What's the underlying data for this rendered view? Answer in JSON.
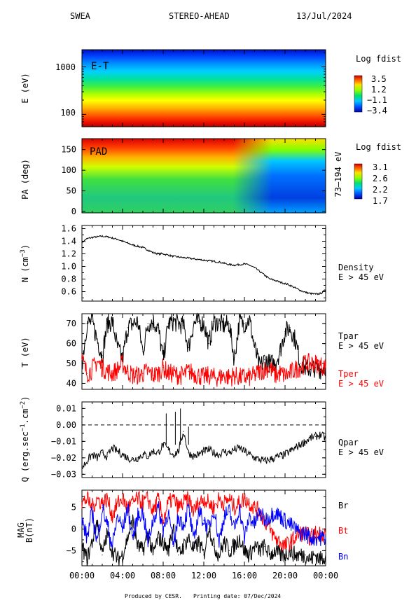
{
  "header": {
    "instrument": "SWEA",
    "spacecraft": "STEREO-AHEAD",
    "date": "13/Jul/2024"
  },
  "footer": {
    "credit": "Produced by CESR.",
    "printing": "Printing date: 07/Dec/2024"
  },
  "colors": {
    "black": "#000000",
    "red": "#ff0000",
    "blue": "#0000ff",
    "dashed": "#000000"
  },
  "chart_data": [
    {
      "id": "energy-spectrogram",
      "type": "heatmap",
      "annotation": "E-T",
      "ylabel": "E (eV)",
      "yscale": "log",
      "ylim": [
        55,
        2300
      ],
      "yticks": [
        {
          "value": 100,
          "label": "100"
        },
        {
          "value": 1000,
          "label": "1000"
        }
      ],
      "colorbar": {
        "title": "Log fdist",
        "range": [
          -3.4,
          3.5
        ],
        "ticks": [
          "3.5",
          "1.2",
          "−1.1",
          "−3.4"
        ]
      }
    },
    {
      "id": "pad-spectrogram",
      "type": "heatmap",
      "annotation": "PAD",
      "ylabel": "PA (deg)",
      "ylim": [
        0,
        180
      ],
      "yticks": [
        0,
        50,
        100,
        150
      ],
      "right_label": "73–194 eV",
      "colorbar": {
        "title": "Log fdist",
        "range": [
          1.7,
          3.1
        ],
        "ticks": [
          "3.1",
          "2.6",
          "2.2",
          "1.7"
        ]
      }
    },
    {
      "id": "density",
      "type": "line",
      "ylabel": "N (cm",
      "ylabel_sup": "−3",
      "ylim": [
        0.45,
        1.65
      ],
      "yticks": [
        "0.6",
        "0.8",
        "1.0",
        "1.2",
        "1.4",
        "1.6"
      ],
      "ytick_values": [
        0.6,
        0.8,
        1.0,
        1.2,
        1.4,
        1.6
      ],
      "legend": [
        "Density",
        "E > 45 eV"
      ],
      "series": [
        {
          "name": "Density",
          "color": "#000000",
          "x": [
            0,
            0.5,
            1,
            1.5,
            2,
            2.5,
            3,
            3.5,
            4,
            4.5,
            5,
            5.5,
            6,
            6.5,
            7,
            7.5,
            8,
            8.5,
            9,
            9.5,
            10,
            10.5,
            11,
            11.5,
            12,
            12.5,
            13,
            13.5,
            14,
            14.5,
            15,
            15.5,
            16,
            16.5,
            17,
            17.5,
            18,
            18.5,
            19,
            19.5,
            20,
            20.5,
            21,
            21.5,
            22,
            22.5,
            23,
            23.5,
            24
          ],
          "values": [
            1.38,
            1.44,
            1.46,
            1.47,
            1.48,
            1.47,
            1.45,
            1.43,
            1.4,
            1.37,
            1.34,
            1.32,
            1.3,
            1.26,
            1.22,
            1.2,
            1.2,
            1.18,
            1.16,
            1.15,
            1.14,
            1.13,
            1.12,
            1.11,
            1.1,
            1.09,
            1.08,
            1.07,
            1.05,
            1.03,
            1.02,
            1.03,
            1.04,
            1.02,
            0.98,
            0.92,
            0.86,
            0.8,
            0.78,
            0.75,
            0.73,
            0.7,
            0.66,
            0.62,
            0.59,
            0.57,
            0.56,
            0.57,
            0.63
          ]
        }
      ]
    },
    {
      "id": "temperature",
      "type": "line",
      "ylabel": "T (eV)",
      "ylim": [
        37,
        75
      ],
      "yticks": [
        "40",
        "50",
        "60",
        "70"
      ],
      "ytick_values": [
        40,
        50,
        60,
        70
      ],
      "series": [
        {
          "name": "Tpar",
          "label_line2": "E > 45 eV",
          "color": "#000000",
          "x": [
            0,
            0.5,
            1,
            1.5,
            2,
            2.5,
            3,
            3.5,
            4,
            4.5,
            5,
            5.5,
            6,
            6.5,
            7,
            7.5,
            8,
            8.5,
            9,
            9.5,
            10,
            10.5,
            11,
            11.5,
            12,
            12.5,
            13,
            13.5,
            14,
            14.5,
            15,
            15.5,
            16,
            16.5,
            17,
            17.5,
            18,
            18.5,
            19,
            19.5,
            20,
            20.5,
            21,
            21.5,
            22,
            22.5,
            23,
            23.5,
            24
          ],
          "values": [
            50,
            70,
            71,
            62,
            54,
            70,
            71,
            58,
            52,
            68,
            70,
            71,
            56,
            70,
            71,
            68,
            52,
            70,
            71,
            70,
            69,
            58,
            70,
            71,
            70,
            60,
            71,
            70,
            69,
            70,
            52,
            71,
            70,
            72,
            58,
            48,
            52,
            50,
            50,
            56,
            66,
            68,
            62,
            50,
            48,
            47,
            48,
            47,
            49
          ]
        },
        {
          "name": "Tper",
          "label_line2": "E > 45 eV",
          "color": "#ff0000",
          "x": [
            0,
            0.5,
            1,
            1.5,
            2,
            2.5,
            3,
            3.5,
            4,
            4.5,
            5,
            5.5,
            6,
            6.5,
            7,
            7.5,
            8,
            8.5,
            9,
            9.5,
            10,
            10.5,
            11,
            11.5,
            12,
            12.5,
            13,
            13.5,
            14,
            14.5,
            15,
            15.5,
            16,
            16.5,
            17,
            17.5,
            18,
            18.5,
            19,
            19.5,
            20,
            20.5,
            21,
            21.5,
            22,
            22.5,
            23,
            23.5,
            24
          ],
          "values": [
            52,
            45,
            47,
            51,
            48,
            46,
            45,
            47,
            50,
            46,
            44,
            44,
            45,
            46,
            44,
            45,
            48,
            45,
            45,
            44,
            44,
            46,
            45,
            44,
            43,
            44,
            43,
            43,
            44,
            43,
            44,
            43,
            43,
            43,
            44,
            46,
            47,
            48,
            44,
            45,
            44,
            45,
            47,
            48,
            50,
            50,
            50,
            49,
            48
          ]
        }
      ]
    },
    {
      "id": "heat-flux",
      "type": "line",
      "ylabel": "Q (erg.sec",
      "ylabel_sup1": "−1",
      "ylabel_mid": ".cm",
      "ylabel_sup2": "−2",
      "ylim": [
        -0.032,
        0.014
      ],
      "yticks": [
        "−0.03",
        "−0.02",
        "−0.01",
        "0.00",
        "0.01"
      ],
      "ytick_values": [
        -0.03,
        -0.02,
        -0.01,
        0.0,
        0.01
      ],
      "reference_line": 0.0,
      "legend": [
        "Qpar",
        "E > 45 eV"
      ],
      "series": [
        {
          "name": "Qpar",
          "color": "#000000",
          "x": [
            0,
            0.5,
            1,
            1.5,
            2,
            2.5,
            3,
            3.5,
            4,
            4.5,
            5,
            5.5,
            6,
            6.5,
            7,
            7.5,
            8,
            8.5,
            9,
            9.5,
            10,
            10.5,
            11,
            11.5,
            12,
            12.5,
            13,
            13.5,
            14,
            14.5,
            15,
            15.5,
            16,
            16.5,
            17,
            17.5,
            18,
            18.5,
            19,
            19.5,
            20,
            20.5,
            21,
            21.5,
            22,
            22.5,
            23,
            23.5,
            24
          ],
          "values": [
            -0.026,
            -0.022,
            -0.018,
            -0.02,
            -0.017,
            -0.019,
            -0.014,
            -0.016,
            -0.018,
            -0.02,
            -0.021,
            -0.02,
            -0.018,
            -0.019,
            -0.016,
            -0.017,
            -0.012,
            -0.015,
            -0.018,
            -0.016,
            -0.004,
            -0.017,
            -0.019,
            -0.018,
            -0.016,
            -0.015,
            -0.017,
            -0.018,
            -0.016,
            -0.017,
            -0.015,
            -0.014,
            -0.016,
            -0.018,
            -0.02,
            -0.021,
            -0.022,
            -0.021,
            -0.02,
            -0.019,
            -0.018,
            -0.016,
            -0.014,
            -0.012,
            -0.01,
            -0.008,
            -0.007,
            -0.006,
            -0.008
          ]
        }
      ],
      "spikes": [
        {
          "x": 8.3,
          "value": 0.007
        },
        {
          "x": 9.2,
          "value": 0.008
        },
        {
          "x": 9.7,
          "value": 0.01
        },
        {
          "x": 10.5,
          "value": -0.001
        }
      ]
    },
    {
      "id": "magnetic-field",
      "type": "line",
      "ylabel": "MAG",
      "ylabel2": "B(nT)",
      "ylim": [
        -8.5,
        9
      ],
      "yticks": [
        "−5",
        "0",
        "5"
      ],
      "ytick_values": [
        -5,
        0,
        5
      ],
      "series": [
        {
          "name": "Br",
          "color": "#000000",
          "x": [
            0,
            0.5,
            1,
            1.5,
            2,
            2.5,
            3,
            3.5,
            4,
            4.5,
            5,
            5.5,
            6,
            6.5,
            7,
            7.5,
            8,
            8.5,
            9,
            9.5,
            10,
            10.5,
            11,
            11.5,
            12,
            12.5,
            13,
            13.5,
            14,
            14.5,
            15,
            15.5,
            16,
            16.5,
            17,
            17.5,
            18,
            18.5,
            19,
            19.5,
            20,
            20.5,
            21,
            21.5,
            22,
            22.5,
            23,
            23.5,
            24
          ],
          "values": [
            -4,
            -7,
            -3,
            2,
            -6,
            -1,
            -5,
            -7,
            -6,
            -2,
            2,
            -4,
            -5,
            -1,
            -6,
            -2,
            -3,
            -5,
            1,
            -6,
            -4,
            -2,
            -5,
            -3,
            -6,
            1,
            -4,
            -6,
            -3,
            -5,
            -4,
            -2,
            -5,
            -6,
            -4,
            -5,
            -4,
            -6,
            -5,
            -6,
            -6,
            -5,
            -6,
            -6,
            -6,
            -7,
            -6,
            -7,
            -6
          ]
        },
        {
          "name": "Bt",
          "color": "#ff0000",
          "x": [
            0,
            0.5,
            1,
            1.5,
            2,
            2.5,
            3,
            3.5,
            4,
            4.5,
            5,
            5.5,
            6,
            6.5,
            7,
            7.5,
            8,
            8.5,
            9,
            9.5,
            10,
            10.5,
            11,
            11.5,
            12,
            12.5,
            13,
            13.5,
            14,
            14.5,
            15,
            15.5,
            16,
            16.5,
            17,
            17.5,
            18,
            18.5,
            19,
            19.5,
            20,
            20.5,
            21,
            21.5,
            22,
            22.5,
            23,
            23.5,
            24
          ],
          "values": [
            6,
            7,
            5,
            7,
            6,
            7,
            3,
            6,
            7,
            5,
            6,
            7,
            6,
            7,
            4,
            7,
            2,
            6,
            7,
            5,
            6,
            7,
            4,
            6,
            7,
            6,
            5,
            7,
            6,
            7,
            5,
            6,
            7,
            6,
            5,
            4,
            2,
            0,
            -2,
            -3,
            -4,
            -3,
            -2,
            -1,
            -1,
            -2,
            -1,
            -1,
            -1
          ]
        },
        {
          "name": "Bn",
          "color": "#0000ff",
          "x": [
            0,
            0.5,
            1,
            1.5,
            2,
            2.5,
            3,
            3.5,
            4,
            4.5,
            5,
            5.5,
            6,
            6.5,
            7,
            7.5,
            8,
            8.5,
            9,
            9.5,
            10,
            10.5,
            11,
            11.5,
            12,
            12.5,
            13,
            13.5,
            14,
            14.5,
            15,
            15.5,
            16,
            16.5,
            17,
            17.5,
            18,
            18.5,
            19,
            19.5,
            20,
            20.5,
            21,
            21.5,
            22,
            22.5,
            23,
            23.5,
            24
          ],
          "values": [
            2,
            -2,
            4,
            -3,
            5,
            1,
            -4,
            3,
            0,
            5,
            -2,
            3,
            4,
            -3,
            2,
            5,
            0,
            4,
            -4,
            3,
            1,
            5,
            -3,
            4,
            2,
            0,
            5,
            -3,
            3,
            4,
            0,
            5,
            -2,
            3,
            1,
            4,
            2,
            3,
            4,
            3,
            2,
            1,
            0,
            -1,
            -1,
            -2,
            -2,
            -2,
            -2
          ]
        }
      ]
    }
  ],
  "x_axis": {
    "range": [
      0,
      24
    ],
    "ticks": [
      "00:00",
      "04:00",
      "08:00",
      "12:00",
      "16:00",
      "20:00",
      "00:00"
    ],
    "tick_values": [
      0,
      4,
      8,
      12,
      16,
      20,
      24
    ]
  }
}
